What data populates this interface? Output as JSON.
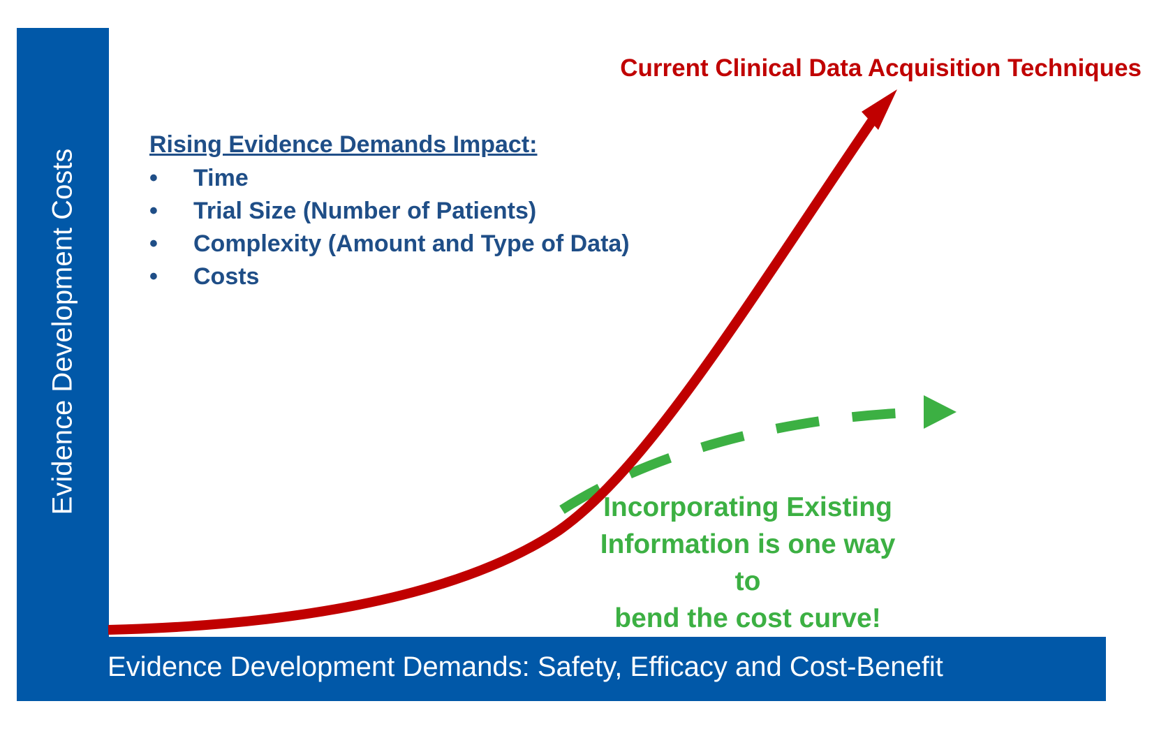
{
  "axes": {
    "y_label": "Evidence Development Costs",
    "x_label": "Evidence Development Demands: Safety, Efficacy and Cost-Benefit"
  },
  "red_curve": {
    "label": "Current Clinical Data Acquisition Techniques",
    "color": "#c00000"
  },
  "green_curve": {
    "label_lines": [
      "Incorporating Existing",
      "Information is one way to",
      "bend the cost curve!"
    ],
    "color": "#3cb043"
  },
  "impact_box": {
    "heading": "Rising Evidence Demands Impact:",
    "bullet": "•",
    "items": [
      "Time",
      "Trial Size (Number of Patients)",
      "Complexity (Amount and Type of Data)",
      "Costs"
    ]
  },
  "colors": {
    "axis_bar": "#0158a8",
    "impact_text": "#1f4e87"
  }
}
